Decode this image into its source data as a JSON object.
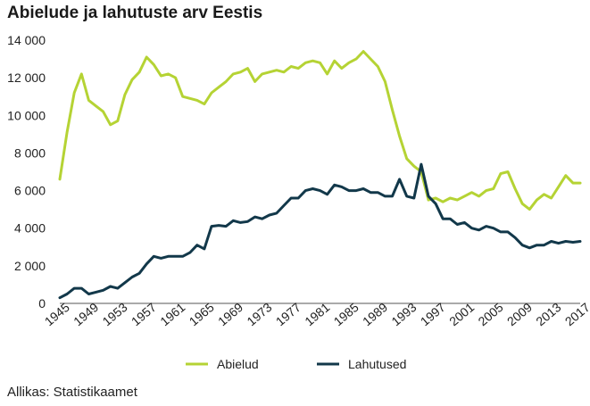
{
  "chart_data": {
    "type": "line",
    "title": "Abielude ja lahutuste arv Eestis",
    "xlabel": "",
    "ylabel": "",
    "xlim": [
      1945,
      2017
    ],
    "ylim": [
      0,
      14000
    ],
    "ytick_values": [
      0,
      2000,
      4000,
      6000,
      8000,
      10000,
      12000,
      14000
    ],
    "ytick_labels": [
      "0",
      "2 000",
      "4 000",
      "6 000",
      "8 000",
      "10 000",
      "12 000",
      "14 000"
    ],
    "xtick_values": [
      1945,
      1949,
      1953,
      1957,
      1961,
      1965,
      1969,
      1973,
      1977,
      1981,
      1985,
      1989,
      1993,
      1997,
      2001,
      2005,
      2009,
      2013,
      2017
    ],
    "xtick_labels": [
      "1945",
      "1949",
      "1953",
      "1957",
      "1961",
      "1965",
      "1969",
      "1973",
      "1977",
      "1981",
      "1985",
      "1989",
      "1993",
      "1997",
      "2001",
      "2005",
      "2009",
      "2013",
      "2017"
    ],
    "grid": false,
    "legend_position": "bottom",
    "x": [
      1945,
      1946,
      1947,
      1948,
      1949,
      1950,
      1951,
      1952,
      1953,
      1954,
      1955,
      1956,
      1957,
      1958,
      1959,
      1960,
      1961,
      1962,
      1963,
      1964,
      1965,
      1966,
      1967,
      1968,
      1969,
      1970,
      1971,
      1972,
      1973,
      1974,
      1975,
      1976,
      1977,
      1978,
      1979,
      1980,
      1981,
      1982,
      1983,
      1984,
      1985,
      1986,
      1987,
      1988,
      1989,
      1990,
      1991,
      1992,
      1993,
      1994,
      1995,
      1996,
      1997,
      1998,
      1999,
      2000,
      2001,
      2002,
      2003,
      2004,
      2005,
      2006,
      2007,
      2008,
      2009,
      2010,
      2011,
      2012,
      2013,
      2014,
      2015,
      2016,
      2017
    ],
    "series": [
      {
        "name": "Abielud",
        "color": "#b5d334",
        "values": [
          6600,
          9100,
          11200,
          12200,
          10800,
          10500,
          10200,
          9500,
          9700,
          11100,
          11900,
          12300,
          13100,
          12700,
          12100,
          12200,
          12000,
          11000,
          10900,
          10800,
          10600,
          11200,
          11500,
          11800,
          12200,
          12300,
          12500,
          11800,
          12200,
          12300,
          12400,
          12300,
          12600,
          12500,
          12800,
          12900,
          12800,
          12200,
          12900,
          12500,
          12800,
          13000,
          13400,
          13000,
          12600,
          11800,
          10300,
          8900,
          7700,
          7300,
          7000,
          5500,
          5600,
          5400,
          5600,
          5500,
          5700,
          5900,
          5700,
          6000,
          6100,
          6900,
          7000,
          6100,
          5300,
          5000,
          5500,
          5800,
          5600,
          6200,
          6800,
          6400,
          6400
        ]
      },
      {
        "name": "Lahutused",
        "color": "#12384a",
        "values": [
          300,
          500,
          800,
          800,
          500,
          600,
          700,
          900,
          800,
          1100,
          1400,
          1600,
          2100,
          2500,
          2400,
          2500,
          2500,
          2500,
          2700,
          3100,
          2900,
          4100,
          4150,
          4100,
          4400,
          4300,
          4350,
          4600,
          4500,
          4700,
          4800,
          5200,
          5600,
          5600,
          6000,
          6100,
          6000,
          5800,
          6300,
          6200,
          6000,
          6000,
          6100,
          5900,
          5900,
          5700,
          5700,
          6600,
          5700,
          5600,
          7400,
          5700,
          5300,
          4500,
          4500,
          4200,
          4300,
          4000,
          3900,
          4100,
          4000,
          3800,
          3800,
          3500,
          3100,
          2950,
          3100,
          3100,
          3300,
          3200,
          3300,
          3250,
          3300
        ]
      }
    ],
    "legend": [
      {
        "label": "Abielud",
        "color": "#b5d334"
      },
      {
        "label": "Lahutused",
        "color": "#12384a"
      }
    ],
    "source": "Allikas: Statistikaamet"
  }
}
